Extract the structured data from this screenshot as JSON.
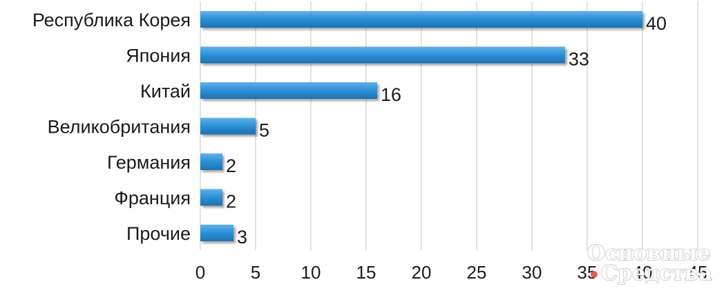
{
  "chart_data": {
    "type": "bar",
    "orientation": "horizontal",
    "categories": [
      "Республика Корея",
      "Япония",
      "Китай",
      "Великобритания",
      "Германия",
      "Франция",
      "Прочие"
    ],
    "values": [
      40,
      33,
      16,
      5,
      2,
      2,
      3
    ],
    "x_ticks": [
      "0",
      "5",
      "10",
      "15",
      "20",
      "25",
      "30",
      "35",
      "40",
      "45"
    ],
    "xlim": [
      0,
      45
    ],
    "grid": "vertical",
    "bar_color": "#2b8fd6",
    "title": "",
    "xlabel": "",
    "ylabel": ""
  },
  "watermark": {
    "line1": "Основные",
    "line2": "Средства",
    "dot_color": "#e05a5a"
  }
}
